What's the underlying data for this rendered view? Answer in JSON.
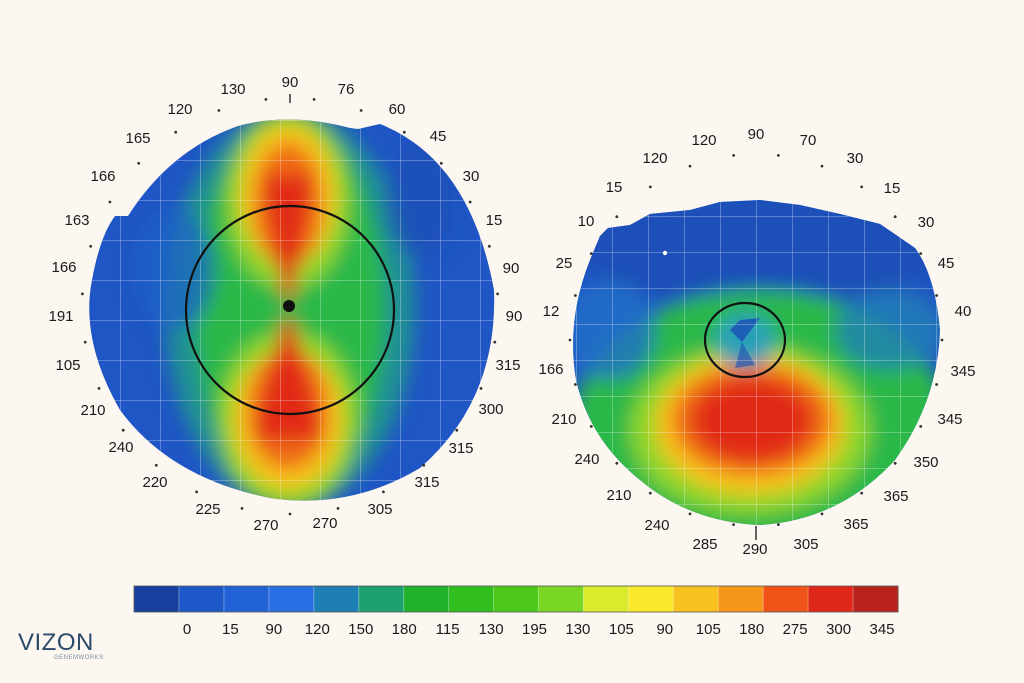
{
  "colors": {
    "background": "#fcf7f0",
    "legend": [
      "#163f9e",
      "#1c58c8",
      "#2163d6",
      "#2a6ee3",
      "#1e7fb5",
      "#1e9f70",
      "#21b22d",
      "#31bf1f",
      "#4cc81a",
      "#79d623",
      "#d8eb2c",
      "#f8e92a",
      "#f7c21e",
      "#f6971a",
      "#ef5317",
      "#e0281a",
      "#b8241b"
    ]
  },
  "map_left": {
    "name": "left-topography-map",
    "labels": [
      "90",
      "76",
      "60",
      "45",
      "30",
      "15",
      "90",
      "90",
      "315",
      "300",
      "315",
      "315",
      "305",
      "270",
      "270",
      "225",
      "220",
      "240",
      "210",
      "105",
      "191",
      "166",
      "163",
      "166",
      "165",
      "120",
      "130"
    ]
  },
  "map_right": {
    "name": "right-topography-map",
    "labels": [
      "90",
      "70",
      "30",
      "15",
      "30",
      "45",
      "40",
      "345",
      "345",
      "350",
      "365",
      "365",
      "305",
      "290",
      "285",
      "240",
      "210",
      "240",
      "210",
      "166",
      "12",
      "25",
      "10",
      "15",
      "120",
      "120"
    ]
  },
  "legend": {
    "labels": [
      "0",
      "15",
      "90",
      "120",
      "150",
      "180",
      "115",
      "130",
      "195",
      "130",
      "105",
      "90",
      "105",
      "180",
      "275",
      "300",
      "345"
    ]
  },
  "logo": {
    "text": "VIZON",
    "subtitle": "GENEMWORKS"
  }
}
